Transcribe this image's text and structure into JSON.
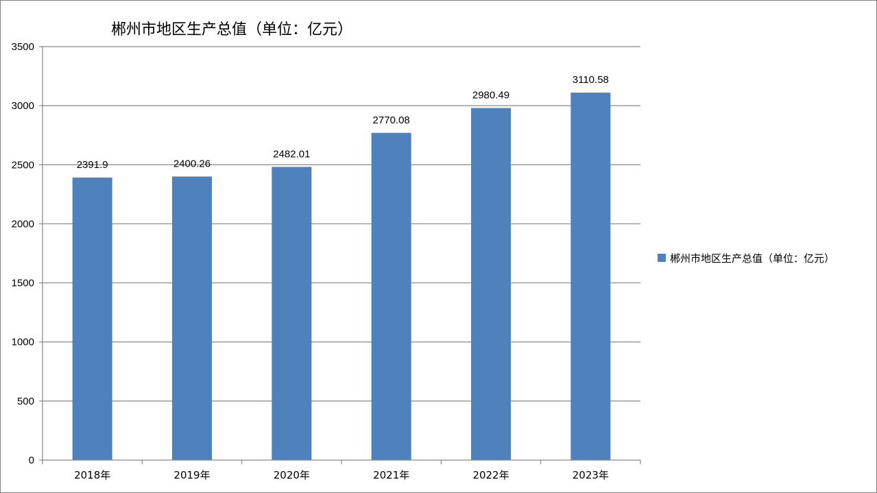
{
  "chart_data": {
    "type": "bar",
    "title": "郴州市地区生产总值（单位：亿元）",
    "categories": [
      "2018年",
      "2019年",
      "2020年",
      "2021年",
      "2022年",
      "2023年"
    ],
    "series": [
      {
        "name": "郴州市地区生产总值（单位：亿元）",
        "values": [
          2391.9,
          2400.26,
          2482.01,
          2770.08,
          2980.49,
          3110.58
        ],
        "labels": [
          "2391.9",
          "2400.26",
          "2482.01",
          "2770.08",
          "2980.49",
          "3110.58"
        ],
        "color": "#4f81bd"
      }
    ],
    "ylim": [
      0,
      3500
    ],
    "yticks": [
      "0",
      "500",
      "1000",
      "1500",
      "2000",
      "2500",
      "3000",
      "3500"
    ],
    "grid": true,
    "legend_position": "right"
  }
}
